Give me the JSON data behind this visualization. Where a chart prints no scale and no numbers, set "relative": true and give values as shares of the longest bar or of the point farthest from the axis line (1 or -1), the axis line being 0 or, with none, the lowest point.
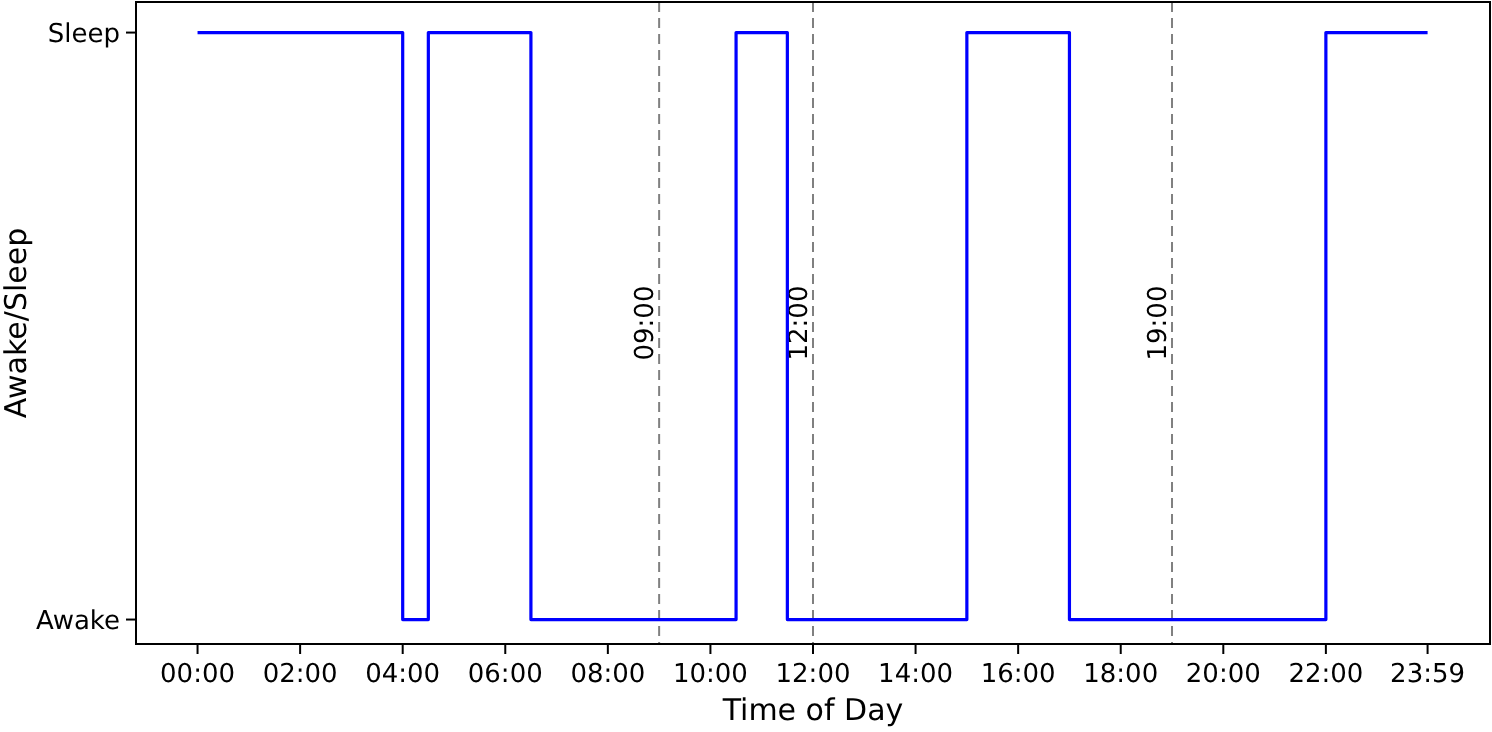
{
  "chart_data": {
    "type": "step",
    "xlabel": "Time of Day",
    "ylabel": "Awake/Sleep",
    "x": [
      0,
      4,
      4.5,
      6.5,
      10.5,
      11.5,
      15,
      17,
      22,
      23.983
    ],
    "series": [
      {
        "color": "#0000ff",
        "values": [
          1,
          0.04,
          1,
          0.04,
          1,
          0.04,
          1,
          0.04,
          1,
          1
        ]
      }
    ],
    "relative": true,
    "xlim": [
      -1.2,
      25.2
    ],
    "xticks": [
      {
        "value": 0,
        "label": "00:00"
      },
      {
        "value": 2,
        "label": "02:00"
      },
      {
        "value": 4,
        "label": "04:00"
      },
      {
        "value": 6,
        "label": "06:00"
      },
      {
        "value": 8,
        "label": "08:00"
      },
      {
        "value": 10,
        "label": "10:00"
      },
      {
        "value": 12,
        "label": "12:00"
      },
      {
        "value": 14,
        "label": "14:00"
      },
      {
        "value": 16,
        "label": "16:00"
      },
      {
        "value": 18,
        "label": "18:00"
      },
      {
        "value": 20,
        "label": "20:00"
      },
      {
        "value": 22,
        "label": "22:00"
      },
      {
        "value": 23.983,
        "label": "23:59"
      }
    ],
    "y_categories": [
      "Sleep",
      "Awake"
    ],
    "ref_lines": [
      {
        "axis": "x",
        "value": 9,
        "label": "09:00",
        "color": "#808080",
        "line_style": "dashed"
      },
      {
        "axis": "x",
        "value": 12,
        "label": "12:00",
        "color": "#808080",
        "line_style": "dashed"
      },
      {
        "axis": "x",
        "value": 19,
        "label": "19:00",
        "color": "#808080",
        "line_style": "dashed"
      }
    ],
    "grid": false,
    "line_style": "solid",
    "marker": "none"
  }
}
